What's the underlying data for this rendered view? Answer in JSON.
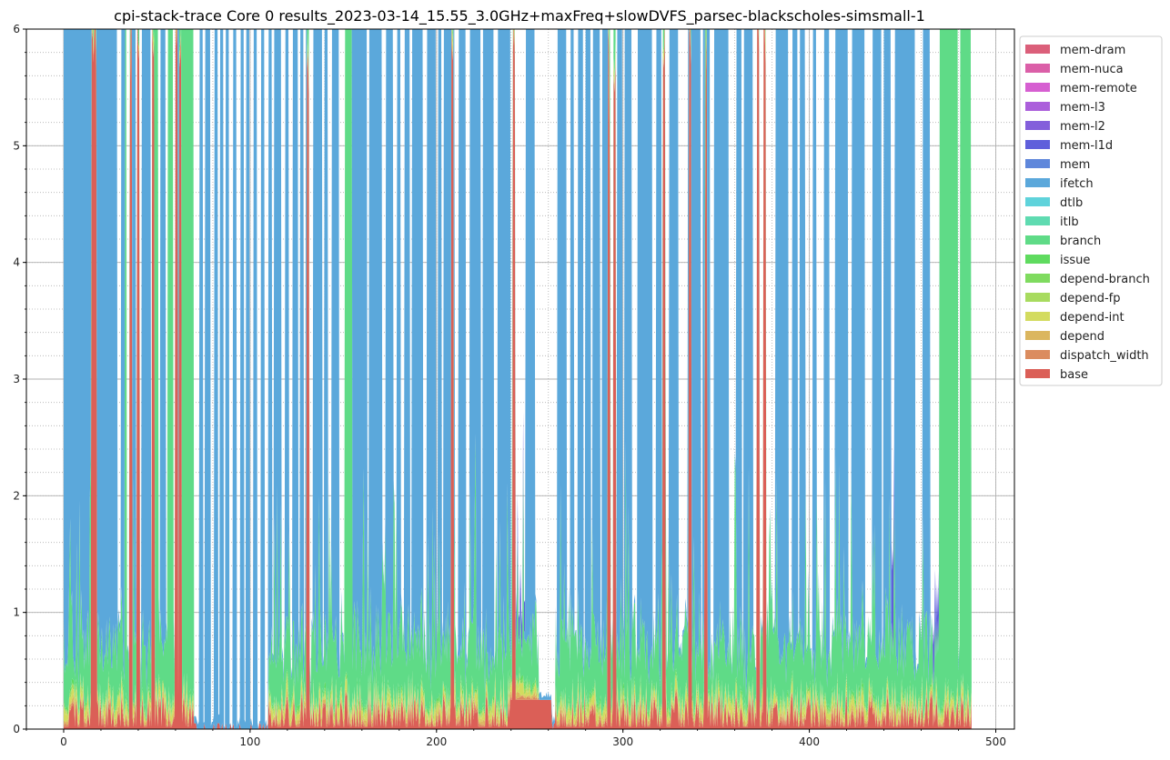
{
  "chart_data": {
    "type": "area",
    "stacked": true,
    "title": "cpi-stack-trace Core 0 results_2023-03-14_15.55_3.0GHz+maxFreq+slowDVFS_parsec-blackscholes-simsmall-1",
    "xlabel": "",
    "ylabel": "",
    "xlim": [
      -20,
      510
    ],
    "ylim": [
      0,
      6
    ],
    "x_ticks": [
      0,
      100,
      200,
      300,
      400,
      500
    ],
    "y_ticks": [
      0,
      1,
      2,
      3,
      4,
      5,
      6
    ],
    "grid": true,
    "legend_position": "outside-upper-right",
    "series": [
      {
        "name": "mem-dram",
        "color": "#db5f7a"
      },
      {
        "name": "mem-nuca",
        "color": "#db5fa8"
      },
      {
        "name": "mem-remote",
        "color": "#d65fd1"
      },
      {
        "name": "mem-l3",
        "color": "#ab5fdb"
      },
      {
        "name": "mem-l2",
        "color": "#835fdb"
      },
      {
        "name": "mem-l1d",
        "color": "#5f5fdb"
      },
      {
        "name": "mem",
        "color": "#5f87db"
      },
      {
        "name": "ifetch",
        "color": "#5ba8db"
      },
      {
        "name": "dtlb",
        "color": "#5fd3db"
      },
      {
        "name": "itlb",
        "color": "#5fdbb1"
      },
      {
        "name": "branch",
        "color": "#5fdb87"
      },
      {
        "name": "issue",
        "color": "#5fdb5f"
      },
      {
        "name": "depend-branch",
        "color": "#7fdb5f"
      },
      {
        "name": "depend-fp",
        "color": "#a8db5f"
      },
      {
        "name": "depend-int",
        "color": "#d3db5f"
      },
      {
        "name": "depend",
        "color": "#dbb65f"
      },
      {
        "name": "dispatch_width",
        "color": "#db8c5f"
      },
      {
        "name": "base",
        "color": "#db5f57"
      }
    ],
    "ifetch_full_bands": [
      [
        0,
        15
      ],
      [
        16,
        29
      ],
      [
        31,
        33
      ],
      [
        37,
        39
      ],
      [
        42,
        47
      ],
      [
        52,
        55
      ],
      [
        60,
        62
      ],
      [
        73,
        75
      ],
      [
        76,
        79
      ],
      [
        81,
        83
      ],
      [
        84,
        86
      ],
      [
        87,
        89
      ],
      [
        91,
        93
      ],
      [
        95,
        97
      ],
      [
        98,
        100
      ],
      [
        102,
        104
      ],
      [
        106,
        108
      ],
      [
        110,
        112
      ],
      [
        113,
        115
      ],
      [
        115,
        117
      ],
      [
        119,
        121
      ],
      [
        123,
        126
      ],
      [
        127,
        129
      ],
      [
        130,
        132
      ],
      [
        134,
        136
      ],
      [
        136,
        139
      ],
      [
        140,
        142
      ],
      [
        144,
        146
      ],
      [
        146,
        148
      ],
      [
        155,
        163
      ],
      [
        164,
        171
      ],
      [
        173,
        175
      ],
      [
        175,
        177
      ],
      [
        179,
        181
      ],
      [
        183,
        186
      ],
      [
        187,
        193
      ],
      [
        195,
        200
      ],
      [
        201,
        203
      ],
      [
        204,
        210
      ],
      [
        212,
        216
      ],
      [
        218,
        224
      ],
      [
        225,
        231
      ],
      [
        233,
        240
      ],
      [
        248,
        253
      ],
      [
        265,
        270
      ],
      [
        272,
        274
      ],
      [
        276,
        279
      ],
      [
        280,
        283
      ],
      [
        284,
        288
      ],
      [
        289,
        293
      ],
      [
        297,
        300
      ],
      [
        301,
        305
      ],
      [
        308,
        316
      ],
      [
        318,
        321
      ],
      [
        325,
        330
      ],
      [
        335,
        342
      ],
      [
        343,
        347
      ],
      [
        349,
        357
      ],
      [
        361,
        364
      ],
      [
        365,
        370
      ],
      [
        382,
        386
      ],
      [
        386,
        389
      ],
      [
        391,
        394
      ],
      [
        395,
        398
      ],
      [
        402,
        404
      ],
      [
        408,
        411
      ],
      [
        414,
        418
      ],
      [
        418,
        421
      ],
      [
        423,
        428
      ],
      [
        428,
        430
      ],
      [
        434,
        439
      ],
      [
        440,
        444
      ],
      [
        446,
        448
      ],
      [
        448,
        453
      ],
      [
        453,
        457
      ],
      [
        461,
        465
      ]
    ],
    "branch_full_bands": [
      [
        33,
        34
      ],
      [
        49,
        51
      ],
      [
        56,
        59
      ],
      [
        63,
        70
      ],
      [
        151,
        155
      ],
      [
        470,
        480
      ],
      [
        481,
        487
      ]
    ],
    "red_full_spikes": [
      15.5,
      17,
      36,
      40,
      48,
      60.5,
      62.5,
      131,
      208.5,
      241.5,
      292.5,
      295.5,
      322,
      336,
      344.5,
      372.5,
      376
    ]
  }
}
